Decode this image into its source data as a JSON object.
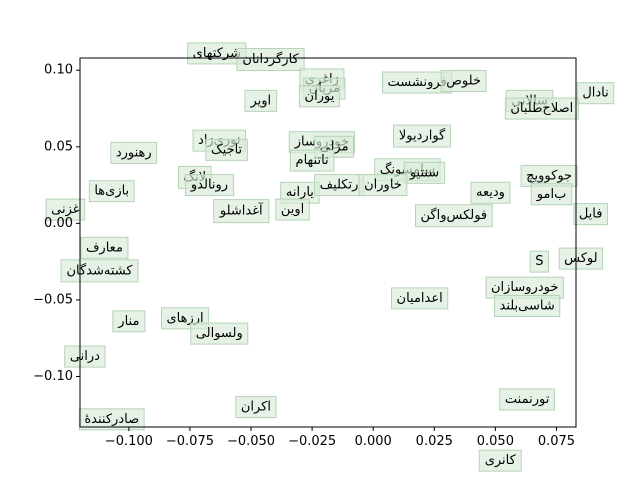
{
  "chart_data": {
    "type": "scatter",
    "title": "",
    "xlabel": "",
    "ylabel": "",
    "xlim": [
      -0.12,
      0.083
    ],
    "ylim": [
      -0.133,
      0.108
    ],
    "xticks": [
      -0.1,
      -0.075,
      -0.05,
      -0.025,
      0.0,
      0.025,
      0.05,
      0.075
    ],
    "xtick_labels": [
      "−0.100",
      "−0.075",
      "−0.050",
      "−0.025",
      "0.000",
      "0.025",
      "0.050",
      "0.075"
    ],
    "yticks": [
      -0.1,
      -0.05,
      0.0,
      0.05,
      0.1
    ],
    "ytick_labels": [
      "−0.10",
      "−0.05",
      "0.00",
      "0.05",
      "0.10"
    ],
    "grid": false,
    "label_box_color": "#d8ebd8",
    "points": [
      {
        "label": "شرکتهای",
        "x": -0.064,
        "y": 0.111
      },
      {
        "label": "کارگردانان",
        "x": -0.042,
        "y": 0.107
      },
      {
        "label": "زاغری",
        "x": -0.021,
        "y": 0.094
      },
      {
        "label": "مریان",
        "x": -0.02,
        "y": 0.088
      },
      {
        "label": "یوران",
        "x": -0.022,
        "y": 0.083
      },
      {
        "label": "اویر",
        "x": -0.046,
        "y": 0.08
      },
      {
        "label": "فرونشست",
        "x": 0.018,
        "y": 0.092
      },
      {
        "label": "خلوص",
        "x": 0.037,
        "y": 0.093
      },
      {
        "label": "نادال",
        "x": 0.091,
        "y": 0.085
      },
      {
        "label": "سالانی",
        "x": 0.064,
        "y": 0.08
      },
      {
        "label": "اصلاح‌طلبان",
        "x": 0.069,
        "y": 0.075
      },
      {
        "label": "گواردیولا",
        "x": 0.02,
        "y": 0.057
      },
      {
        "label": "نوری‌زاد",
        "x": -0.063,
        "y": 0.054
      },
      {
        "label": "تاجیک",
        "x": -0.06,
        "y": 0.048
      },
      {
        "label": "خودروساز",
        "x": -0.021,
        "y": 0.053
      },
      {
        "label": "مزلی",
        "x": -0.016,
        "y": 0.05
      },
      {
        "label": "تاتنهام",
        "x": -0.025,
        "y": 0.041
      },
      {
        "label": "رهنورد",
        "x": -0.098,
        "y": 0.046
      },
      {
        "label": "لانگ",
        "x": -0.073,
        "y": 0.03
      },
      {
        "label": "رونالدو",
        "x": -0.067,
        "y": 0.025
      },
      {
        "label": "سامسونگ",
        "x": 0.014,
        "y": 0.035
      },
      {
        "label": "سنتیو",
        "x": 0.021,
        "y": 0.033
      },
      {
        "label": "جوکوویچ",
        "x": 0.072,
        "y": 0.031
      },
      {
        "label": "ب‌امو",
        "x": 0.073,
        "y": 0.019
      },
      {
        "label": "بازی‌ها",
        "x": -0.107,
        "y": 0.021
      },
      {
        "label": "یارانه",
        "x": -0.03,
        "y": 0.02
      },
      {
        "label": "رتکلیف",
        "x": -0.014,
        "y": 0.025
      },
      {
        "label": "خاوران",
        "x": 0.004,
        "y": 0.025
      },
      {
        "label": "ودیعه",
        "x": 0.048,
        "y": 0.02
      },
      {
        "label": "آغداشلو",
        "x": -0.054,
        "y": 0.008
      },
      {
        "label": "اوین",
        "x": -0.033,
        "y": 0.009
      },
      {
        "label": "فولکس‌واگن",
        "x": 0.033,
        "y": 0.005
      },
      {
        "label": "فایل",
        "x": 0.089,
        "y": 0.006
      },
      {
        "label": "غزنی",
        "x": -0.126,
        "y": 0.009
      },
      {
        "label": "معارف",
        "x": -0.11,
        "y": -0.016
      },
      {
        "label": "کشته‌شدگان",
        "x": -0.112,
        "y": -0.031
      },
      {
        "label": "S",
        "x": 0.068,
        "y": -0.025
      },
      {
        "label": "لوکس",
        "x": 0.085,
        "y": -0.023
      },
      {
        "label": "خودروسازان",
        "x": 0.062,
        "y": -0.042
      },
      {
        "label": "شاسی‌بلند",
        "x": 0.063,
        "y": -0.054
      },
      {
        "label": "اعدامیان",
        "x": 0.019,
        "y": -0.049
      },
      {
        "label": "ارزهای",
        "x": -0.077,
        "y": -0.062
      },
      {
        "label": "منار",
        "x": -0.1,
        "y": -0.064
      },
      {
        "label": "ولسوالی",
        "x": -0.063,
        "y": -0.072
      },
      {
        "label": "درانی",
        "x": -0.118,
        "y": -0.087
      },
      {
        "label": "اکران",
        "x": -0.048,
        "y": -0.12
      },
      {
        "label": "تورنمنت",
        "x": 0.063,
        "y": -0.115
      },
      {
        "label": "صادرکنندهٔ",
        "x": -0.107,
        "y": -0.128
      },
      {
        "label": "کانری",
        "x": 0.052,
        "y": -0.155
      }
    ]
  }
}
